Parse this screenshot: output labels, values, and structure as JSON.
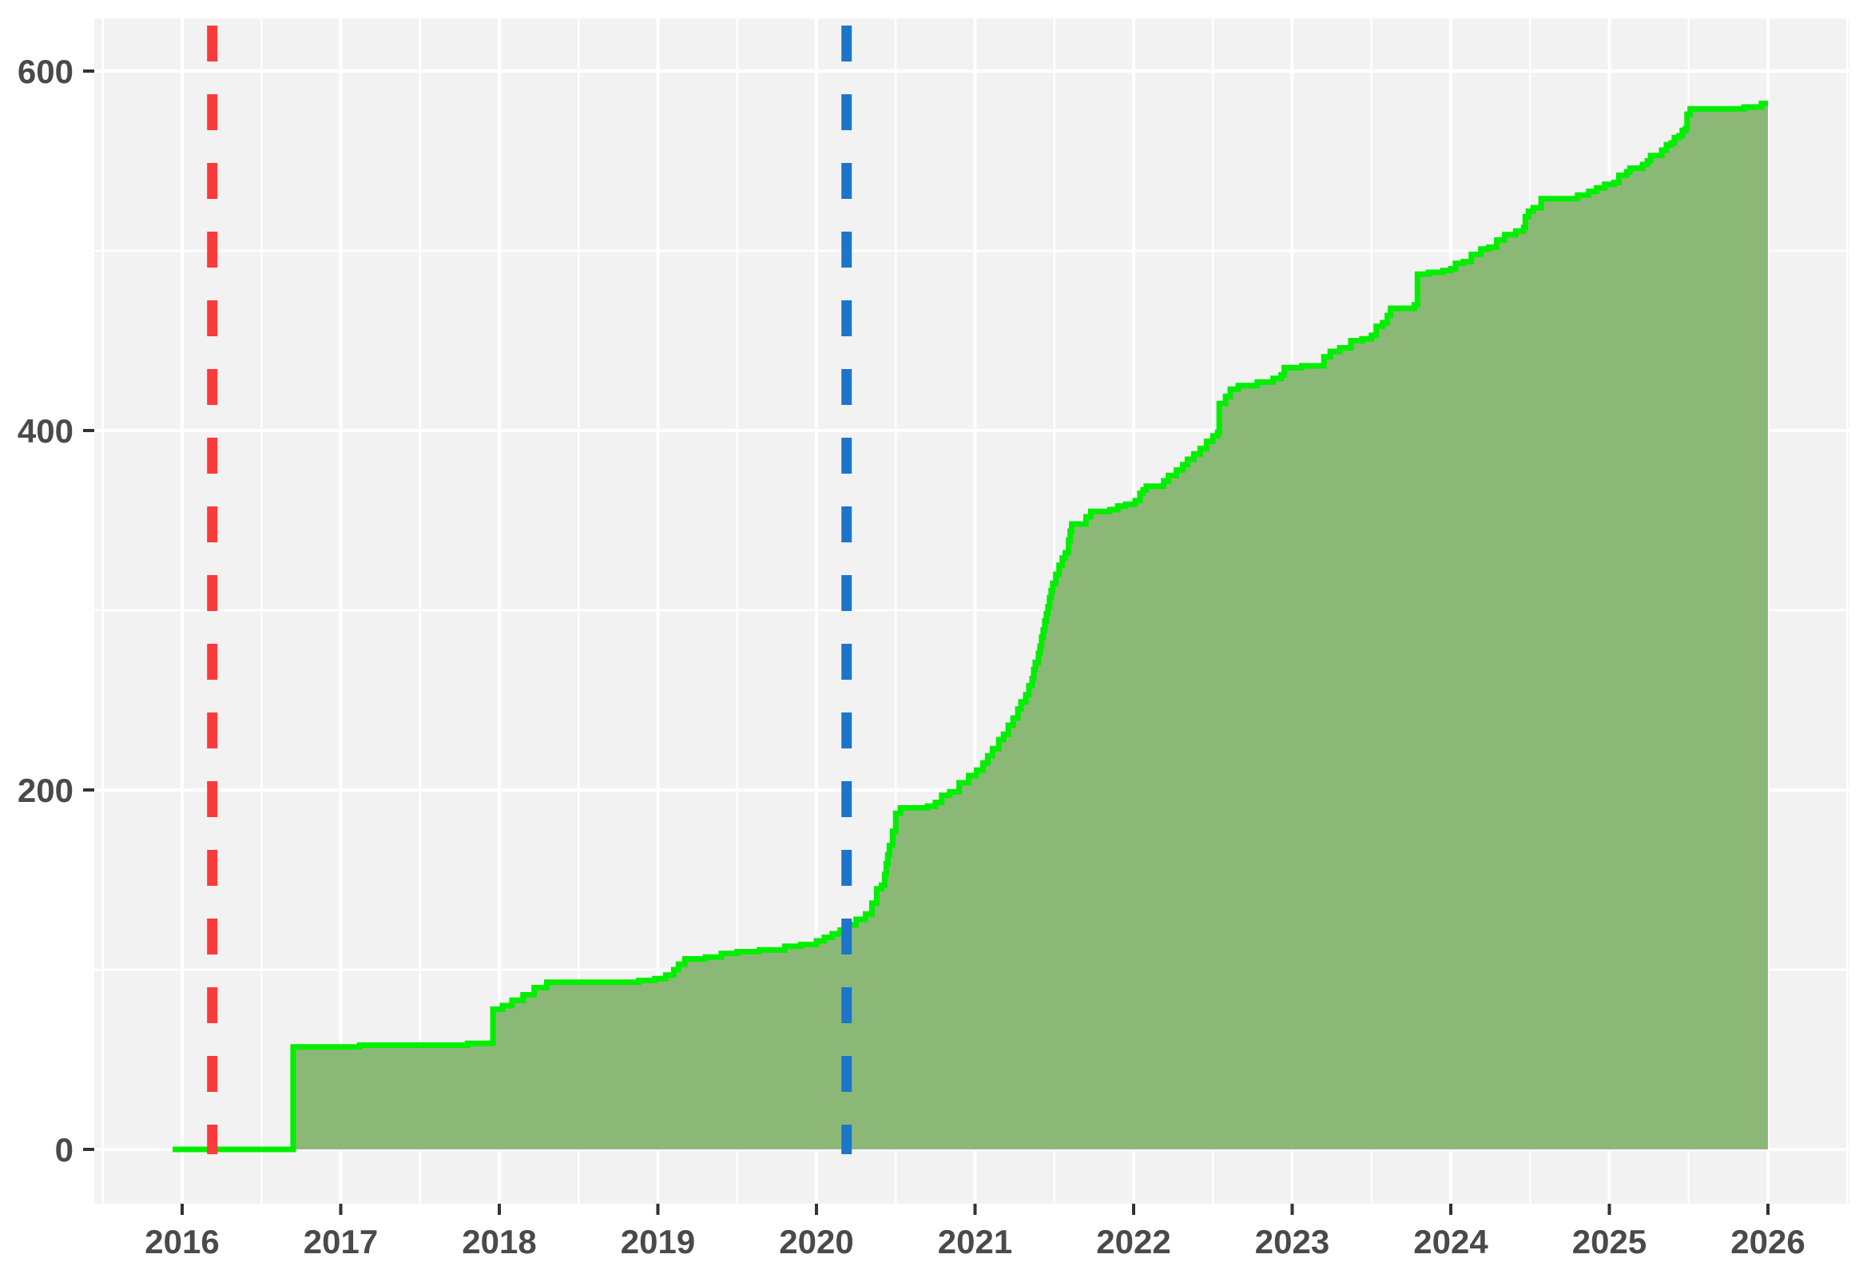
{
  "chart_data": {
    "type": "area",
    "variant": "cumulative-step-area",
    "title": "",
    "xlabel": "",
    "ylabel": "",
    "legend": "none",
    "panel_background": "#F2F2F2",
    "grid": {
      "major_color": "#FFFFFF",
      "minor_color": "#FFFFFF",
      "major_width": 4,
      "minor_width": 2.5
    },
    "axis_text_color": "#4A4A4A",
    "tick_mark_color": "#333333",
    "xlim": [
      2015.45,
      2026.51
    ],
    "ylim": [
      -30,
      630
    ],
    "x_ticks": [
      2016,
      2017,
      2018,
      2019,
      2020,
      2021,
      2022,
      2023,
      2024,
      2025,
      2026
    ],
    "x_tick_labels": [
      "2016",
      "2017",
      "2018",
      "2019",
      "2020",
      "2021",
      "2022",
      "2023",
      "2024",
      "2025",
      "2026"
    ],
    "x_minor_ticks": [
      2015.5,
      2016.5,
      2017.5,
      2018.5,
      2019.5,
      2020.5,
      2021.5,
      2022.5,
      2023.5,
      2024.5,
      2025.5,
      2026.5
    ],
    "y_ticks": [
      0,
      200,
      400,
      600
    ],
    "y_tick_labels": [
      "0",
      "200",
      "400",
      "600"
    ],
    "y_minor_ticks": [
      100,
      300,
      500
    ],
    "vlines": [
      {
        "name": "red-dashed-event-line",
        "x": 2016.19,
        "color": "#FB3A3A",
        "style": "dashed",
        "dash": [
          45,
          41
        ],
        "width": 13
      },
      {
        "name": "blue-dashed-event-line",
        "x": 2020.19,
        "color": "#1C75CB",
        "style": "dashed",
        "dash": [
          45,
          41
        ],
        "width": 13
      }
    ],
    "series": [
      {
        "name": "cumulative-count",
        "type": "step-area",
        "line_color": "#00EE00",
        "line_width": 7,
        "fill_color": "#8CB877",
        "points": [
          [
            2015.94,
            0
          ],
          [
            2016.7,
            57
          ],
          [
            2017.12,
            58
          ],
          [
            2017.8,
            59
          ],
          [
            2017.96,
            78
          ],
          [
            2018.02,
            80
          ],
          [
            2018.08,
            83
          ],
          [
            2018.15,
            86
          ],
          [
            2018.22,
            90
          ],
          [
            2018.3,
            93
          ],
          [
            2018.88,
            94
          ],
          [
            2018.98,
            95
          ],
          [
            2019.05,
            97
          ],
          [
            2019.1,
            100
          ],
          [
            2019.13,
            103
          ],
          [
            2019.17,
            106
          ],
          [
            2019.3,
            107
          ],
          [
            2019.4,
            109
          ],
          [
            2019.5,
            110
          ],
          [
            2019.64,
            111
          ],
          [
            2019.8,
            113
          ],
          [
            2019.9,
            114
          ],
          [
            2020.0,
            116
          ],
          [
            2020.05,
            118
          ],
          [
            2020.1,
            120
          ],
          [
            2020.15,
            122
          ],
          [
            2020.19,
            125
          ],
          [
            2020.25,
            128
          ],
          [
            2020.31,
            131
          ],
          [
            2020.35,
            137
          ],
          [
            2020.38,
            145
          ],
          [
            2020.41,
            147
          ],
          [
            2020.43,
            153
          ],
          [
            2020.44,
            159
          ],
          [
            2020.45,
            164
          ],
          [
            2020.46,
            169
          ],
          [
            2020.48,
            177
          ],
          [
            2020.5,
            187
          ],
          [
            2020.53,
            190
          ],
          [
            2020.7,
            191
          ],
          [
            2020.75,
            193
          ],
          [
            2020.79,
            197
          ],
          [
            2020.84,
            199
          ],
          [
            2020.9,
            204
          ],
          [
            2020.96,
            208
          ],
          [
            2021.01,
            211
          ],
          [
            2021.05,
            215
          ],
          [
            2021.08,
            219
          ],
          [
            2021.11,
            223
          ],
          [
            2021.15,
            228
          ],
          [
            2021.18,
            231
          ],
          [
            2021.21,
            236
          ],
          [
            2021.24,
            240
          ],
          [
            2021.27,
            245
          ],
          [
            2021.29,
            249
          ],
          [
            2021.32,
            253
          ],
          [
            2021.34,
            258
          ],
          [
            2021.36,
            262
          ],
          [
            2021.37,
            267
          ],
          [
            2021.38,
            271
          ],
          [
            2021.4,
            276
          ],
          [
            2021.41,
            280
          ],
          [
            2021.42,
            285
          ],
          [
            2021.43,
            289
          ],
          [
            2021.44,
            294
          ],
          [
            2021.45,
            298
          ],
          [
            2021.46,
            302
          ],
          [
            2021.47,
            307
          ],
          [
            2021.48,
            311
          ],
          [
            2021.49,
            315
          ],
          [
            2021.51,
            320
          ],
          [
            2021.53,
            325
          ],
          [
            2021.55,
            329
          ],
          [
            2021.57,
            332
          ],
          [
            2021.59,
            339
          ],
          [
            2021.6,
            344
          ],
          [
            2021.61,
            348
          ],
          [
            2021.7,
            352
          ],
          [
            2021.73,
            355
          ],
          [
            2021.85,
            356
          ],
          [
            2021.9,
            358
          ],
          [
            2021.95,
            359
          ],
          [
            2022.01,
            361
          ],
          [
            2022.04,
            365
          ],
          [
            2022.06,
            367
          ],
          [
            2022.08,
            369
          ],
          [
            2022.19,
            372
          ],
          [
            2022.22,
            375
          ],
          [
            2022.27,
            378
          ],
          [
            2022.31,
            381
          ],
          [
            2022.34,
            384
          ],
          [
            2022.38,
            387
          ],
          [
            2022.42,
            390
          ],
          [
            2022.46,
            394
          ],
          [
            2022.5,
            397
          ],
          [
            2022.53,
            399
          ],
          [
            2022.54,
            415
          ],
          [
            2022.58,
            419
          ],
          [
            2022.61,
            423
          ],
          [
            2022.66,
            425
          ],
          [
            2022.78,
            427
          ],
          [
            2022.88,
            429
          ],
          [
            2022.93,
            431
          ],
          [
            2022.95,
            435
          ],
          [
            2023.06,
            436
          ],
          [
            2023.2,
            441
          ],
          [
            2023.24,
            444
          ],
          [
            2023.3,
            446
          ],
          [
            2023.37,
            450
          ],
          [
            2023.44,
            451
          ],
          [
            2023.5,
            453
          ],
          [
            2023.53,
            458
          ],
          [
            2023.57,
            460
          ],
          [
            2023.6,
            464
          ],
          [
            2023.62,
            468
          ],
          [
            2023.77,
            470
          ],
          [
            2023.79,
            487
          ],
          [
            2023.86,
            488
          ],
          [
            2023.95,
            489
          ],
          [
            2024.0,
            490
          ],
          [
            2024.03,
            493
          ],
          [
            2024.08,
            494
          ],
          [
            2024.13,
            498
          ],
          [
            2024.19,
            501
          ],
          [
            2024.24,
            502
          ],
          [
            2024.29,
            506
          ],
          [
            2024.34,
            509
          ],
          [
            2024.41,
            511
          ],
          [
            2024.46,
            513
          ],
          [
            2024.47,
            519
          ],
          [
            2024.49,
            522
          ],
          [
            2024.52,
            524
          ],
          [
            2024.57,
            529
          ],
          [
            2024.8,
            531
          ],
          [
            2024.87,
            533
          ],
          [
            2024.92,
            535
          ],
          [
            2024.97,
            537
          ],
          [
            2025.03,
            538
          ],
          [
            2025.06,
            542
          ],
          [
            2025.11,
            544
          ],
          [
            2025.13,
            546
          ],
          [
            2025.21,
            548
          ],
          [
            2025.24,
            550
          ],
          [
            2025.26,
            553
          ],
          [
            2025.33,
            556
          ],
          [
            2025.36,
            559
          ],
          [
            2025.39,
            560
          ],
          [
            2025.41,
            563
          ],
          [
            2025.44,
            564
          ],
          [
            2025.46,
            567
          ],
          [
            2025.48,
            568
          ],
          [
            2025.49,
            576
          ],
          [
            2025.51,
            579
          ],
          [
            2025.85,
            580
          ],
          [
            2025.96,
            582
          ],
          [
            2026.0,
            582
          ]
        ]
      }
    ]
  }
}
